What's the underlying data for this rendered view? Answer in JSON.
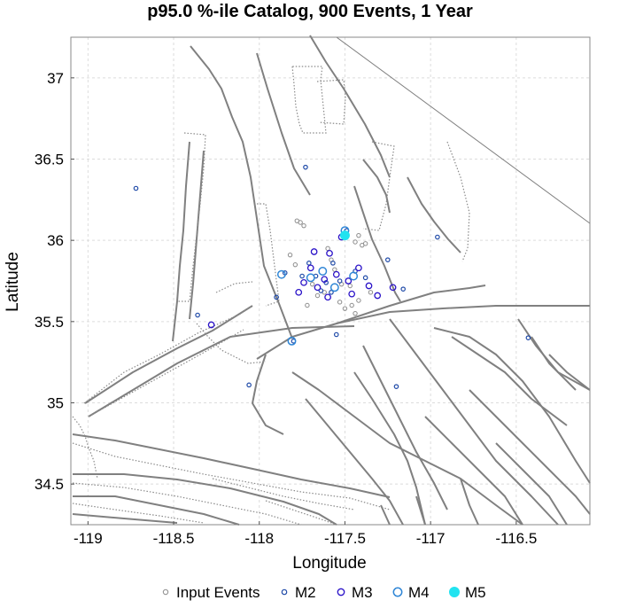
{
  "chart_data": {
    "type": "scatter",
    "title": "p95.0 %-ile Catalog, 900 Events, 1 Year",
    "xlabel": "Longitude",
    "ylabel": "Latitude",
    "xlim": [
      -119.1,
      -116.07
    ],
    "ylim": [
      34.25,
      37.25
    ],
    "xticks": [
      -119,
      -118.5,
      -118,
      -117.5,
      -117,
      -116.5
    ],
    "yticks": [
      34.5,
      35,
      35.5,
      36,
      36.5,
      37
    ],
    "x_tick_labels": [
      "-119",
      "-118.5",
      "-118",
      "-117.5",
      "-117",
      "-116.5"
    ],
    "y_tick_labels": [
      "34.5",
      "35",
      "35.5",
      "36",
      "36.5",
      "37"
    ],
    "grid": true,
    "legend_position": "bottom",
    "colors": {
      "input": "#8c8c8c",
      "m2": "#1f4aa8",
      "m3": "#2a12c8",
      "m4": "#2f86d6",
      "m5": "#22e3f0",
      "faults": "#808080"
    },
    "series": [
      {
        "name": "Input Events",
        "marker": "small-hollow-circle",
        "color": "#8c8c8c",
        "points": [
          [
            -117.76,
            36.11
          ],
          [
            -117.74,
            36.09
          ],
          [
            -117.78,
            36.12
          ],
          [
            -117.42,
            36.03
          ],
          [
            -117.44,
            35.99
          ],
          [
            -117.4,
            35.97
          ],
          [
            -117.38,
            35.98
          ],
          [
            -117.46,
            35.6
          ],
          [
            -117.42,
            35.63
          ],
          [
            -117.5,
            35.58
          ],
          [
            -117.44,
            35.55
          ],
          [
            -117.53,
            35.62
          ],
          [
            -117.82,
            35.91
          ],
          [
            -117.79,
            35.85
          ],
          [
            -117.69,
            35.73
          ],
          [
            -117.62,
            35.68
          ],
          [
            -117.56,
            35.82
          ],
          [
            -117.35,
            35.68
          ],
          [
            -117.6,
            35.95
          ],
          [
            -117.72,
            35.6
          ],
          [
            -117.52,
            35.73
          ],
          [
            -117.47,
            35.72
          ],
          [
            -117.66,
            35.66
          ],
          [
            -117.58,
            35.88
          ]
        ]
      },
      {
        "name": "M2",
        "marker": "small-circle",
        "color": "#1f4aa8",
        "points": [
          [
            -118.72,
            36.32
          ],
          [
            -117.73,
            36.45
          ],
          [
            -117.55,
            35.42
          ],
          [
            -117.8,
            35.38
          ],
          [
            -118.06,
            35.11
          ],
          [
            -117.2,
            35.1
          ],
          [
            -117.16,
            35.7
          ],
          [
            -116.96,
            36.02
          ],
          [
            -116.43,
            35.4
          ],
          [
            -118.36,
            35.54
          ],
          [
            -117.9,
            35.65
          ],
          [
            -117.25,
            35.88
          ],
          [
            -117.67,
            35.78
          ],
          [
            -117.61,
            35.74
          ],
          [
            -117.71,
            35.86
          ],
          [
            -117.58,
            35.68
          ],
          [
            -117.49,
            36.06
          ],
          [
            -117.53,
            35.75
          ],
          [
            -117.44,
            35.81
          ],
          [
            -117.64,
            35.69
          ],
          [
            -117.75,
            35.78
          ],
          [
            -117.57,
            35.86
          ],
          [
            -117.38,
            35.77
          ],
          [
            -117.85,
            35.8
          ]
        ]
      },
      {
        "name": "M3",
        "marker": "circle",
        "color": "#2a12c8",
        "points": [
          [
            -117.7,
            35.83
          ],
          [
            -117.62,
            35.76
          ],
          [
            -117.55,
            35.79
          ],
          [
            -117.66,
            35.71
          ],
          [
            -117.48,
            35.75
          ],
          [
            -117.52,
            36.02
          ],
          [
            -117.42,
            35.83
          ],
          [
            -117.77,
            35.68
          ],
          [
            -117.59,
            35.92
          ],
          [
            -117.36,
            35.72
          ],
          [
            -117.31,
            35.66
          ],
          [
            -117.68,
            35.93
          ],
          [
            -117.46,
            35.67
          ],
          [
            -117.74,
            35.74
          ],
          [
            -117.6,
            35.65
          ],
          [
            -117.22,
            35.71
          ],
          [
            -118.28,
            35.48
          ]
        ]
      },
      {
        "name": "M4",
        "marker": "large-circle",
        "color": "#2f86d6",
        "points": [
          [
            -117.5,
            36.06
          ],
          [
            -117.63,
            35.81
          ],
          [
            -117.7,
            35.77
          ],
          [
            -117.45,
            35.78
          ],
          [
            -117.56,
            35.71
          ],
          [
            -117.81,
            35.38
          ],
          [
            -117.87,
            35.79
          ]
        ]
      },
      {
        "name": "M5",
        "marker": "filled-circle",
        "color": "#22e3f0",
        "points": [
          [
            -117.5,
            36.03
          ]
        ]
      }
    ]
  }
}
